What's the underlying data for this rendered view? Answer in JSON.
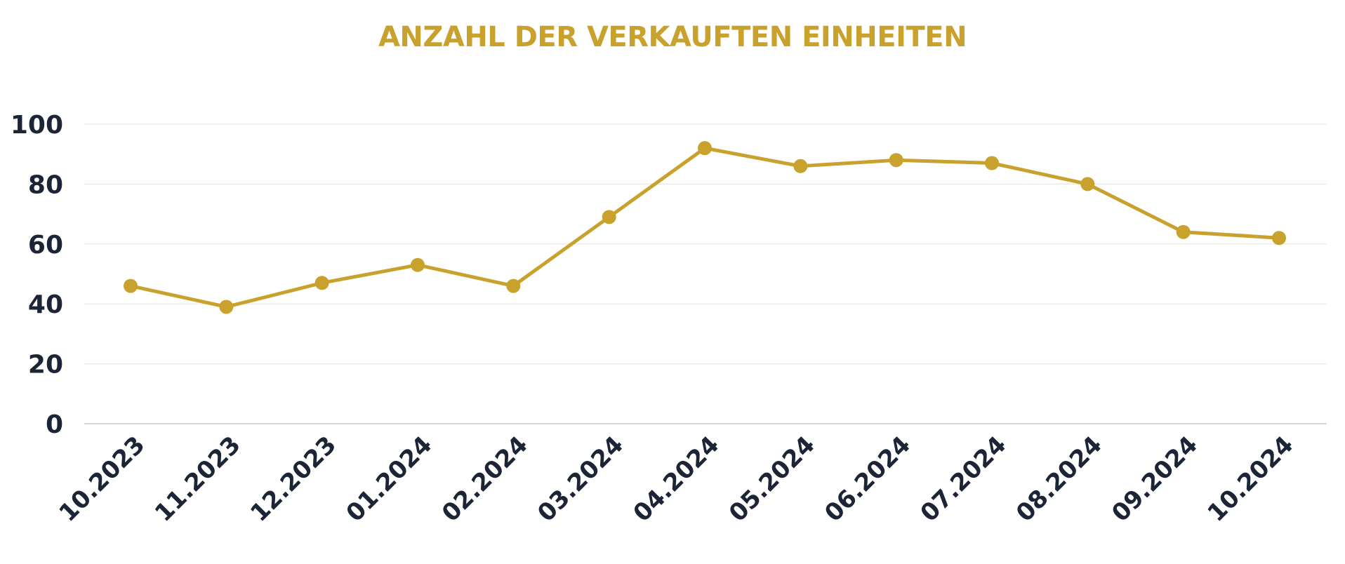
{
  "chart_data": {
    "type": "line",
    "title": "ANZAHL DER VERKAUFTEN EINHEITEN",
    "xlabel": "",
    "ylabel": "",
    "categories": [
      "10.2023",
      "11.2023",
      "12.2023",
      "01.2024",
      "02.2024",
      "03.2024",
      "04.2024",
      "05.2024",
      "06.2024",
      "07.2024",
      "08.2024",
      "09.2024",
      "10.2024"
    ],
    "series": [
      {
        "values": [
          46,
          39,
          47,
          53,
          46,
          69,
          92,
          86,
          88,
          87,
          80,
          64,
          62
        ]
      }
    ],
    "ylim": [
      0,
      100
    ],
    "yticks": [
      "0",
      "20",
      "40",
      "60",
      "80",
      "100"
    ],
    "grid": true,
    "legend": "none",
    "colors": {
      "line": "#C9A22E",
      "title": "#C9A22E",
      "tick_text": "#1B2535",
      "grid": "#E6E6E6",
      "axis": "#C8C8C8"
    }
  }
}
